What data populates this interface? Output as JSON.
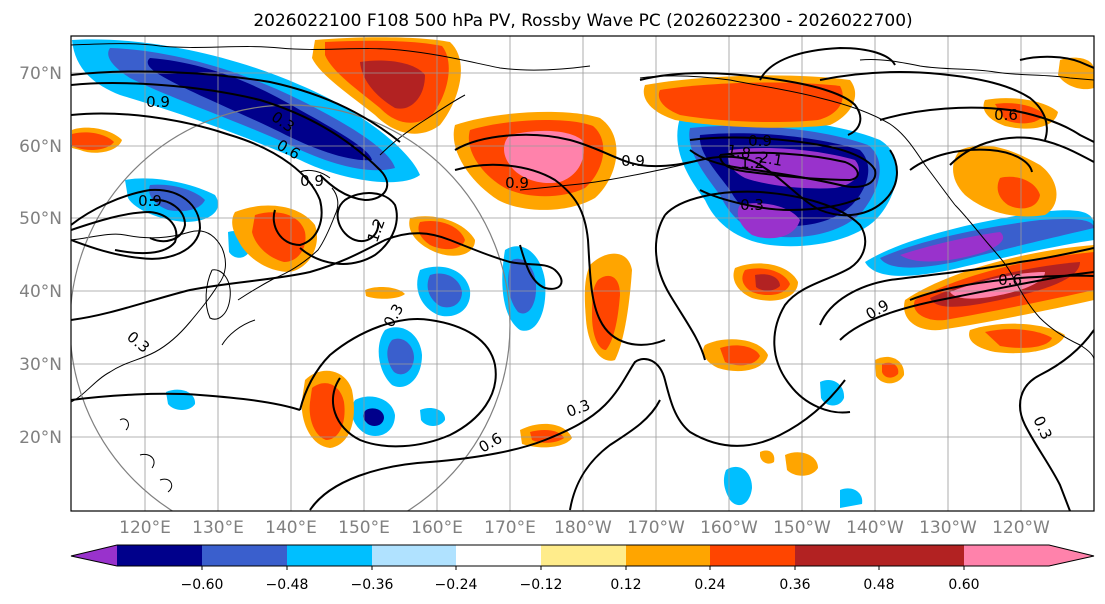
{
  "title": "2026022100 F108 500 hPa PV, Rossby Wave PC (2026022300 - 2026022700)",
  "map": {
    "lat_labels": [
      "70°N",
      "60°N",
      "50°N",
      "40°N",
      "30°N",
      "20°N"
    ],
    "lon_labels": [
      "120°E",
      "130°E",
      "140°E",
      "150°E",
      "160°E",
      "170°E",
      "180°W",
      "170°W",
      "160°W",
      "150°W",
      "140°W",
      "130°W",
      "120°W"
    ],
    "contour_labels": [
      "0.9",
      "0.3",
      "0.6",
      "0.9",
      "0.9",
      "1.2",
      "0.9",
      "0.9",
      "0.9",
      "1.8",
      "2.1",
      "1.2",
      "0.3",
      "0.6",
      "0.9",
      "0.6",
      "0.3",
      "0.3",
      "0.3",
      "0.6",
      "0.3"
    ]
  },
  "colorbar": {
    "ticks": [
      "−0.60",
      "−0.48",
      "−0.36",
      "−0.24",
      "−0.12",
      "0.12",
      "0.24",
      "0.36",
      "0.48",
      "0.60"
    ],
    "colors": [
      "#9932cc",
      "#00008b",
      "#3a5fcd",
      "#00bfff",
      "#b0e2ff",
      "#ffffff",
      "#ffec8b",
      "#ffa500",
      "#ff4500",
      "#b22222",
      "#ff82ab"
    ]
  }
}
